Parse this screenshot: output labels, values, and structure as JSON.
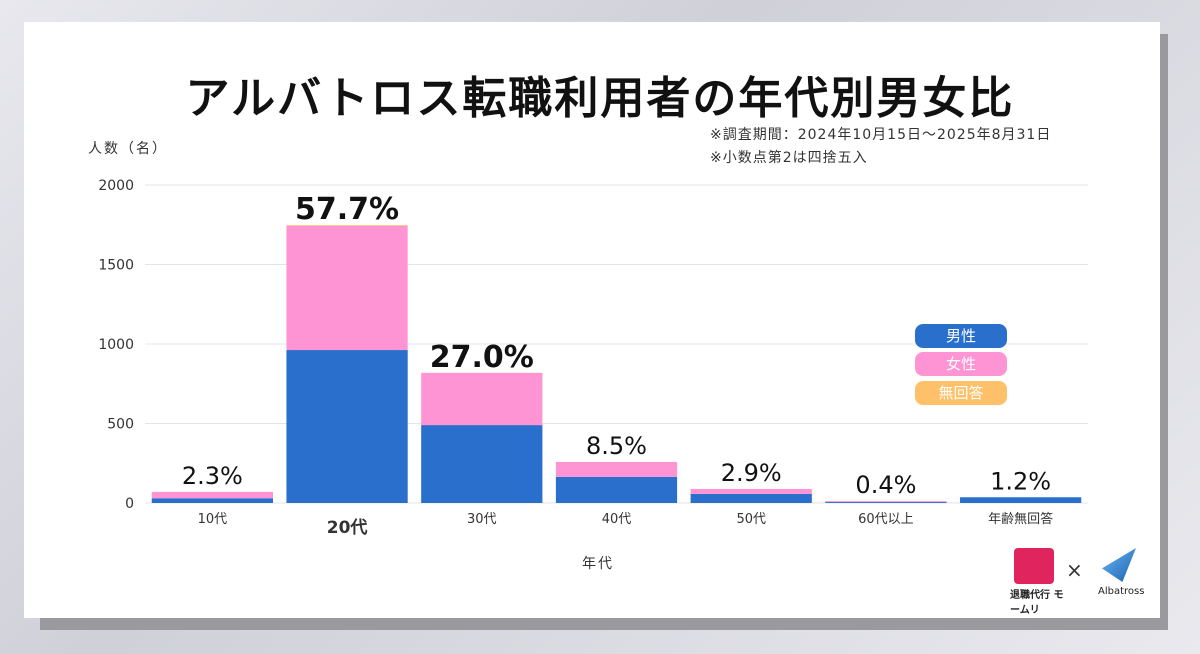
{
  "title": "アルバトロス転職利用者の年代別男女比",
  "notes": [
    "※調査期間：2024年10月15日～2025年8月31日",
    "※小数点第2は四捨五入"
  ],
  "logos": {
    "left": "退職代行 モームリ",
    "separator": "×",
    "right": "Albatross"
  },
  "chart_data": {
    "type": "bar",
    "stacked": true,
    "title": "アルバトロス転職利用者の年代別男女比",
    "xlabel": "年代",
    "ylabel": "人数（名）",
    "ylim": [
      0,
      2000
    ],
    "yticks": [
      0,
      500,
      1000,
      1500,
      2000
    ],
    "grid": true,
    "legend_position": "right",
    "categories": [
      "10代",
      "20代",
      "30代",
      "40代",
      "50代",
      "60代以上",
      "年齢無回答"
    ],
    "series": [
      {
        "name": "男性",
        "color": "#2a6fcc",
        "values": [
          30,
          962,
          490,
          164,
          57,
          6,
          36
        ]
      },
      {
        "name": "女性",
        "color": "#ff94d4",
        "values": [
          40,
          781,
          328,
          94,
          31,
          6,
          0
        ]
      },
      {
        "name": "無回答",
        "color": "#ffc06a",
        "values": [
          0,
          5,
          1,
          0,
          0,
          0,
          0
        ]
      }
    ],
    "data_labels": [
      "2.3%",
      "57.7%",
      "27.0%",
      "8.5%",
      "2.9%",
      "0.4%",
      "1.2%"
    ],
    "highlight": [
      false,
      true,
      true,
      false,
      false,
      false,
      false
    ]
  }
}
